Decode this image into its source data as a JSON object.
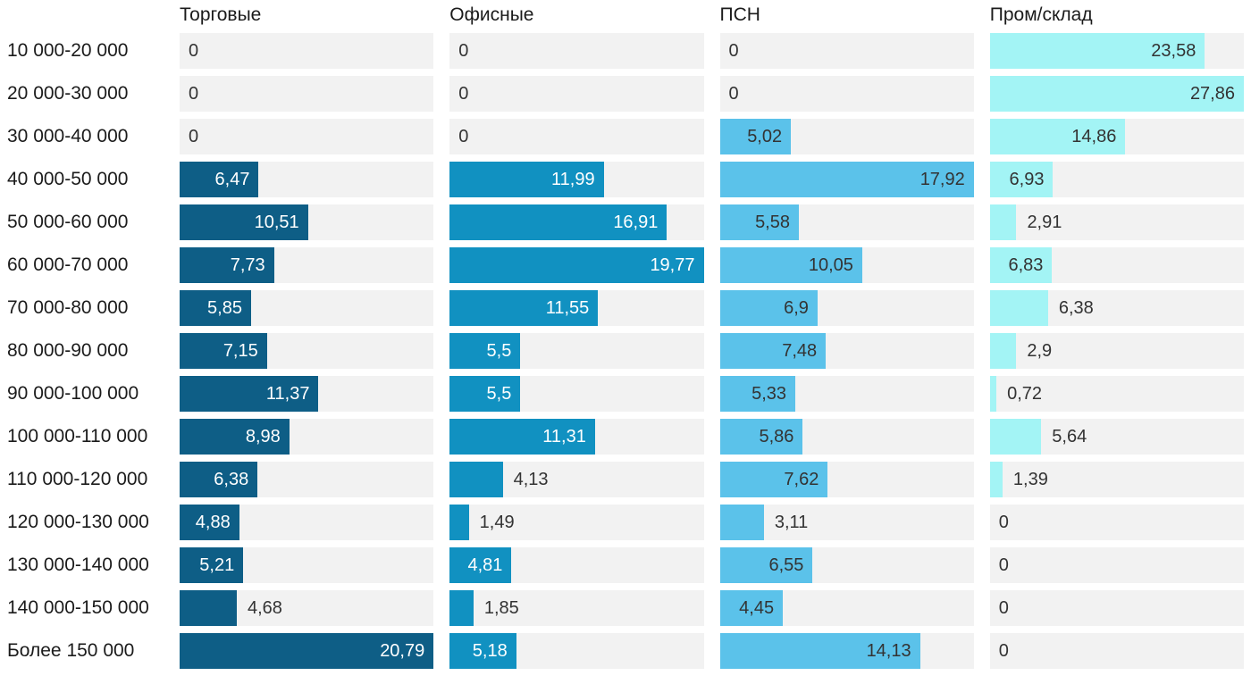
{
  "chart_data": {
    "type": "bar",
    "orientation": "horizontal",
    "scaling": "each column scaled to its own max value",
    "track_color": "#F2F2F2",
    "outside_label_color": "#333333",
    "row_label_color": "#1B1B1B",
    "categories": [
      "10 000-20 000",
      "20 000-30 000",
      "30 000-40 000",
      "40 000-50 000",
      "50 000-60 000",
      "60 000-70 000",
      "70 000-80 000",
      "80 000-90 000",
      "90 000-100 000",
      "100 000-110 000",
      "110 000-120 000",
      "120 000-130 000",
      "130 000-140 000",
      "140 000-150 000",
      "Более 150 000"
    ],
    "series": [
      {
        "name": "Торговые",
        "color": "#0E5E86",
        "inside_label_color": "#FFFFFF",
        "max": 20.79,
        "values": [
          0,
          0,
          0,
          6.47,
          10.51,
          7.73,
          5.85,
          7.15,
          11.37,
          8.98,
          6.38,
          4.88,
          5.21,
          4.68,
          20.79
        ],
        "labels": [
          "0",
          "0",
          "0",
          "6,47",
          "10,51",
          "7,73",
          "5,85",
          "7,15",
          "11,37",
          "8,98",
          "6,38",
          "4,88",
          "5,21",
          "4,68",
          "20,79"
        ],
        "label_position": [
          "zero",
          "zero",
          "zero",
          "inside",
          "inside",
          "inside",
          "inside",
          "inside",
          "inside",
          "inside",
          "inside",
          "inside",
          "inside",
          "outside",
          "inside"
        ]
      },
      {
        "name": "Офисные",
        "color": "#1191C1",
        "inside_label_color": "#FFFFFF",
        "max": 19.77,
        "values": [
          0,
          0,
          0,
          11.99,
          16.91,
          19.77,
          11.55,
          5.5,
          5.5,
          11.31,
          4.13,
          1.49,
          4.81,
          1.85,
          5.18
        ],
        "labels": [
          "0",
          "0",
          "0",
          "11,99",
          "16,91",
          "19,77",
          "11,55",
          "5,5",
          "5,5",
          "11,31",
          "4,13",
          "1,49",
          "4,81",
          "1,85",
          "5,18"
        ],
        "label_position": [
          "zero",
          "zero",
          "zero",
          "inside",
          "inside",
          "inside",
          "inside",
          "inside",
          "inside",
          "inside",
          "outside",
          "outside",
          "inside",
          "outside",
          "inside"
        ]
      },
      {
        "name": "ПСН",
        "color": "#5BC2EA",
        "inside_label_color": "#333333",
        "max": 17.92,
        "values": [
          0,
          0,
          5.02,
          17.92,
          5.58,
          10.05,
          6.9,
          7.48,
          5.33,
          5.86,
          7.62,
          3.11,
          6.55,
          4.45,
          14.13
        ],
        "labels": [
          "0",
          "0",
          "5,02",
          "17,92",
          "5,58",
          "10,05",
          "6,9",
          "7,48",
          "5,33",
          "5,86",
          "7,62",
          "3,11",
          "6,55",
          "4,45",
          "14,13"
        ],
        "label_position": [
          "zero",
          "zero",
          "inside",
          "inside",
          "inside",
          "inside",
          "inside",
          "inside",
          "inside",
          "inside",
          "inside",
          "outside",
          "inside",
          "inside",
          "inside"
        ]
      },
      {
        "name": "Пром/склад",
        "color": "#A3F4F5",
        "inside_label_color": "#333333",
        "max": 27.86,
        "values": [
          23.58,
          27.86,
          14.86,
          6.93,
          2.91,
          6.83,
          6.38,
          2.9,
          0.72,
          5.64,
          1.39,
          0,
          0,
          0,
          0
        ],
        "labels": [
          "23,58",
          "27,86",
          "14,86",
          "6,93",
          "2,91",
          "6,83",
          "6,38",
          "2,9",
          "0,72",
          "5,64",
          "1,39",
          "0",
          "0",
          "0",
          "0"
        ],
        "label_position": [
          "inside",
          "inside",
          "inside",
          "inside",
          "outside",
          "inside",
          "outside",
          "outside",
          "outside",
          "outside",
          "outside",
          "zero",
          "zero",
          "zero",
          "zero"
        ]
      }
    ]
  }
}
